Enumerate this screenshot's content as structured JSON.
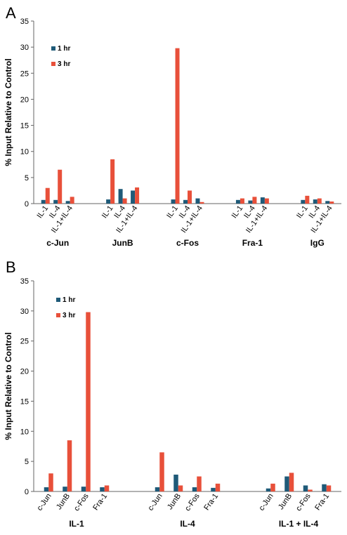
{
  "colors": {
    "series_1hr": "#1f5a78",
    "series_3hr": "#e8503a"
  },
  "chart_data": [
    {
      "panel": "A",
      "type": "bar",
      "ylabel": "% Input Relative to Control",
      "ylim": [
        0,
        35
      ],
      "yticks": [
        0,
        5,
        10,
        15,
        20,
        25,
        30,
        35
      ],
      "legend": [
        "1 hr",
        "3 hr"
      ],
      "legend_position": "top-left",
      "groups": [
        {
          "label": "c-Jun",
          "categories": [
            "IL-1",
            "IL-4",
            "IL-1+IL-4"
          ],
          "one_hr": [
            0.7,
            0.7,
            0.5
          ],
          "three_hr": [
            3.0,
            6.5,
            1.3
          ]
        },
        {
          "label": "JunB",
          "categories": [
            "IL-1",
            "IL-4",
            "IL-1+IL-4"
          ],
          "one_hr": [
            0.8,
            2.8,
            2.5
          ],
          "three_hr": [
            8.5,
            1.0,
            3.1
          ]
        },
        {
          "label": "c-Fos",
          "categories": [
            "IL-1",
            "IL-4",
            "IL-1+IL-4"
          ],
          "one_hr": [
            0.8,
            0.7,
            1.0
          ],
          "three_hr": [
            29.8,
            2.5,
            0.3
          ]
        },
        {
          "label": "Fra-1",
          "categories": [
            "IL-1",
            "IL-4",
            "IL-1+IL-4"
          ],
          "one_hr": [
            0.7,
            0.6,
            1.2
          ],
          "three_hr": [
            1.0,
            1.3,
            1.0
          ]
        },
        {
          "label": "IgG",
          "categories": [
            "IL-1",
            "IL-4",
            "IL-1+IL-4"
          ],
          "one_hr": [
            0.7,
            0.8,
            0.5
          ],
          "three_hr": [
            1.5,
            1.0,
            0.4
          ]
        }
      ]
    },
    {
      "panel": "B",
      "type": "bar",
      "ylabel": "% Input Relative to Control",
      "ylim": [
        0,
        35
      ],
      "yticks": [
        0,
        5,
        10,
        15,
        20,
        25,
        30,
        35
      ],
      "legend": [
        "1 hr",
        "3 hr"
      ],
      "legend_position": "top-left",
      "groups": [
        {
          "label": "IL-1",
          "categories": [
            "c-Jun",
            "JunB",
            "c-Fos",
            "Fra-1"
          ],
          "one_hr": [
            0.7,
            0.8,
            0.8,
            0.7
          ],
          "three_hr": [
            3.0,
            8.5,
            29.8,
            1.0
          ]
        },
        {
          "label": "IL-4",
          "categories": [
            "c-Jun",
            "JunB",
            "c-Fos",
            "Fra-1"
          ],
          "one_hr": [
            0.7,
            2.8,
            0.7,
            0.6
          ],
          "three_hr": [
            6.5,
            1.0,
            2.5,
            1.3
          ]
        },
        {
          "label": "IL-1 + IL-4",
          "categories": [
            "c-Jun",
            "JunB",
            "c-Fos",
            "Fra-1"
          ],
          "one_hr": [
            0.5,
            2.5,
            1.0,
            1.2
          ],
          "three_hr": [
            1.3,
            3.1,
            0.3,
            1.0
          ]
        }
      ]
    }
  ]
}
